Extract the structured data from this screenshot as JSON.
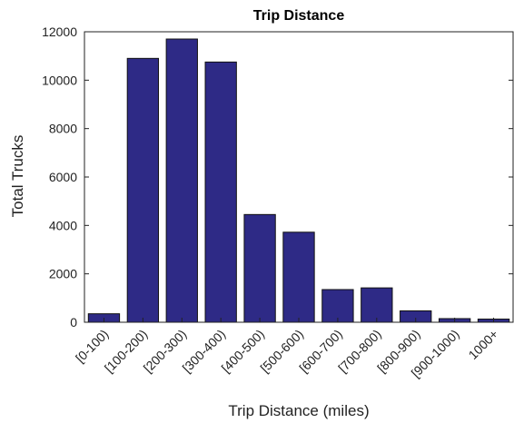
{
  "chart_data": {
    "type": "bar",
    "title": "Trip Distance",
    "xlabel": "Trip Distance (miles)",
    "ylabel": "Total Trucks",
    "categories": [
      "[0-100)",
      "[100-200)",
      "[200-300)",
      "[300-400)",
      "[400-500)",
      "[500-600)",
      "[600-700)",
      "[700-800)",
      "[800-900)",
      "[900-1000)",
      "1000+"
    ],
    "values": [
      350,
      10900,
      11700,
      10750,
      4450,
      3720,
      1350,
      1420,
      470,
      150,
      130
    ],
    "ylim": [
      0,
      12000
    ],
    "yticks": [
      "0",
      "2000",
      "4000",
      "6000",
      "8000",
      "10000",
      "12000"
    ],
    "bar_color": "#2e2a86",
    "grid": false,
    "legend": "none"
  }
}
